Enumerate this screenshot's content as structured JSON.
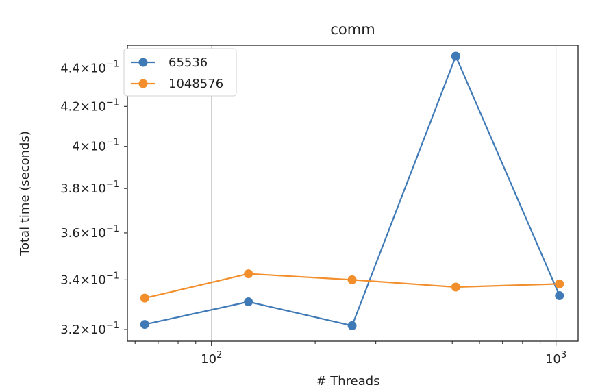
{
  "chart_data": {
    "type": "line",
    "title": "comm",
    "xlabel": "# Threads",
    "ylabel": "Total time (seconds)",
    "xscale": "log",
    "yscale": "log",
    "xlim": [
      57,
      1160
    ],
    "ylim": [
      0.3155,
      0.4525
    ],
    "grid": "x-major",
    "legend_position": "top-left",
    "x": [
      64,
      128,
      256,
      512,
      1024
    ],
    "series": [
      {
        "name": "65536",
        "color": "#3f7ab7",
        "values": [
          0.322,
          0.331,
          0.3215,
          0.4465,
          0.3335
        ]
      },
      {
        "name": "1048576",
        "color": "#f28e2b",
        "values": [
          0.3325,
          0.3425,
          0.34,
          0.337,
          0.3383
        ]
      }
    ],
    "x_ticks": [
      {
        "value": 100,
        "base": "10",
        "exp": "2"
      },
      {
        "value": 1000,
        "base": "10",
        "exp": "3"
      }
    ],
    "y_ticks": [
      {
        "value": 0.32,
        "mant": "3.2",
        "exp": "−1"
      },
      {
        "value": 0.34,
        "mant": "3.4",
        "exp": "−1"
      },
      {
        "value": 0.36,
        "mant": "3.6",
        "exp": "−1"
      },
      {
        "value": 0.38,
        "mant": "3.8",
        "exp": "−1"
      },
      {
        "value": 0.4,
        "mant": "4",
        "exp": "−1"
      },
      {
        "value": 0.42,
        "mant": "4.2",
        "exp": "−1"
      },
      {
        "value": 0.44,
        "mant": "4.4",
        "exp": "−1"
      }
    ]
  }
}
